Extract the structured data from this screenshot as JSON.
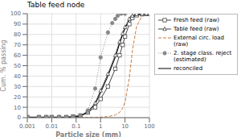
{
  "chart_data": {
    "type": "line",
    "title": "Table feed node",
    "x_label": "Particle size (mm)",
    "y_label": "Cum. % passing",
    "log": "x",
    "grid": true,
    "legend": "right",
    "xlim": [
      0.001,
      100
    ],
    "xticks": [
      0.001,
      0.01,
      0.1,
      1,
      10,
      100
    ],
    "ylim": [
      0,
      100
    ],
    "yticks": [
      0,
      10,
      20,
      30,
      40,
      50,
      60,
      70,
      80,
      90,
      100
    ],
    "series": [
      {
        "name": "Fresh feed (raw)",
        "color": "#444444",
        "marker": "square_open",
        "line_style": "solid",
        "x": [
          0.001,
          0.003,
          0.006,
          0.01,
          0.02,
          0.04,
          0.075,
          0.15,
          0.3,
          0.6,
          1.0,
          2.0,
          4.0,
          6.0,
          8.0,
          10.0,
          15.0,
          20.0,
          30.0,
          50.0,
          75.0,
          100.0
        ],
        "values": [
          0.5,
          0.5,
          0.5,
          0.5,
          0.5,
          0.5,
          1.0,
          2.0,
          5.0,
          10.0,
          18.0,
          30.0,
          47.0,
          60.0,
          70.0,
          78.0,
          90.0,
          96.0,
          98.5,
          99.5,
          99.8,
          100.0
        ]
      },
      {
        "name": "Table feed (raw)",
        "color": "#444444",
        "marker": "triangle_open",
        "line_style": "solid",
        "x": [
          0.001,
          0.003,
          0.006,
          0.01,
          0.02,
          0.04,
          0.075,
          0.15,
          0.3,
          0.6,
          1.0,
          2.0,
          4.0,
          6.0,
          8.0,
          10.0,
          15.0,
          20.0,
          30.0,
          50.0,
          75.0,
          100.0
        ],
        "values": [
          0.5,
          0.5,
          0.5,
          0.5,
          0.5,
          0.5,
          1.0,
          2.0,
          6.0,
          14.0,
          26.0,
          42.0,
          60.0,
          73.0,
          81.0,
          87.0,
          95.0,
          98.0,
          99.5,
          99.8,
          100.0,
          100.0
        ]
      },
      {
        "name": "External circ. load\n(raw)",
        "color": "#c87941",
        "marker": "none",
        "line_style": "dashed",
        "x": [
          0.001,
          0.003,
          0.006,
          0.01,
          0.02,
          0.04,
          0.075,
          0.15,
          0.3,
          0.6,
          1.0,
          2.0,
          4.0,
          6.0,
          8.0,
          10.0,
          15.0,
          20.0,
          30.0,
          50.0,
          75.0,
          100.0
        ],
        "values": [
          0.2,
          0.2,
          0.2,
          0.2,
          0.2,
          0.2,
          0.2,
          0.2,
          0.2,
          0.3,
          0.5,
          1.0,
          2.5,
          5.0,
          9.0,
          15.0,
          38.0,
          64.0,
          88.0,
          98.0,
          100.0,
          100.0
        ]
      },
      {
        "name": "2. stage class. reject\n(estimated)",
        "color": "#888888",
        "marker": "circle",
        "line_style": "dotted",
        "x": [
          0.001,
          0.003,
          0.006,
          0.01,
          0.02,
          0.04,
          0.075,
          0.15,
          0.3,
          0.6,
          1.0,
          2.0,
          3.0,
          4.0,
          5.0,
          7.0,
          10.0
        ],
        "values": [
          0.2,
          0.2,
          0.2,
          0.2,
          0.2,
          0.2,
          0.5,
          1.5,
          7.0,
          28.0,
          58.0,
          82.0,
          91.0,
          95.0,
          98.0,
          100.0,
          100.0
        ]
      },
      {
        "name": "reconciled",
        "color": "#000000",
        "marker": "none",
        "line_style": "solid",
        "x": [
          0.001,
          0.003,
          0.006,
          0.01,
          0.02,
          0.04,
          0.075,
          0.15,
          0.3,
          0.6,
          1.0,
          2.0,
          4.0,
          6.0,
          8.0,
          10.0,
          15.0,
          20.0,
          30.0,
          50.0,
          75.0,
          100.0
        ],
        "values": [
          0.2,
          0.2,
          0.2,
          0.2,
          0.2,
          0.2,
          0.5,
          1.5,
          5.0,
          13.0,
          24.0,
          40.0,
          58.0,
          71.0,
          80.0,
          86.0,
          94.0,
          97.5,
          99.0,
          99.8,
          100.0,
          100.0
        ]
      }
    ]
  }
}
